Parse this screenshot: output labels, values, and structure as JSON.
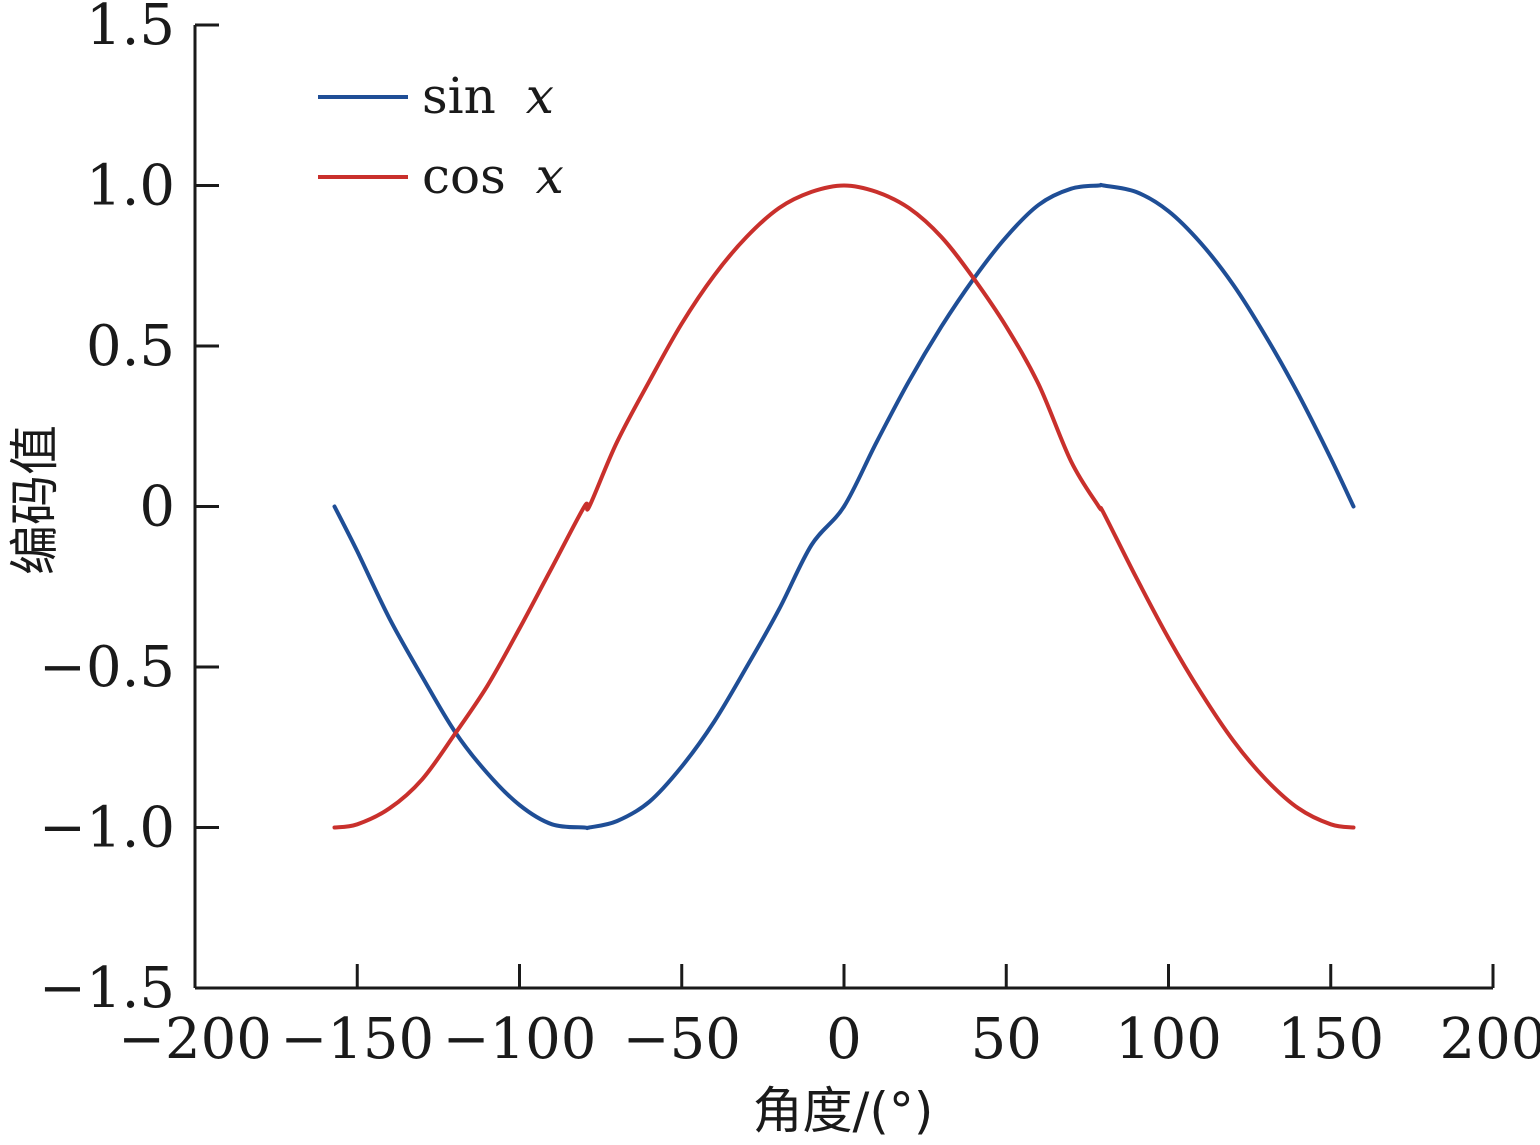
{
  "chart_data": {
    "type": "line",
    "xlabel": "角度/(°)",
    "ylabel": "编码值",
    "xlim": [
      -200,
      200
    ],
    "ylim": [
      -1.5,
      1.5
    ],
    "x_ticks": [
      -200,
      -150,
      -100,
      -50,
      0,
      50,
      100,
      150,
      200
    ],
    "x_tick_labels": [
      "−200",
      "−150",
      "−100",
      "−50",
      "0",
      "50",
      "100",
      "150",
      "200"
    ],
    "y_ticks": [
      -1.5,
      -1.0,
      -0.5,
      0,
      0.5,
      1.0,
      1.5
    ],
    "y_tick_labels": [
      "−1.5",
      "−1.0",
      "−0.5",
      "0",
      "0.5",
      "1.0",
      "1.5"
    ],
    "grid": false,
    "legend_position": "top-left",
    "x": [
      -157,
      -150,
      -140,
      -130,
      -120,
      -110,
      -100,
      -90,
      -80,
      -78.5,
      -70,
      -60,
      -50,
      -40,
      -30,
      -20,
      -10,
      0,
      10,
      20,
      30,
      40,
      50,
      60,
      70,
      78.5,
      80,
      90,
      100,
      110,
      120,
      130,
      140,
      150,
      157
    ],
    "series": [
      {
        "name": "sin x",
        "legend_func": "sin",
        "legend_var": "x",
        "color": "#1f4e96",
        "values": [
          0.0,
          -0.14,
          -0.35,
          -0.53,
          -0.7,
          -0.83,
          -0.93,
          -0.99,
          -1.0,
          -1.0,
          -0.98,
          -0.92,
          -0.81,
          -0.67,
          -0.5,
          -0.32,
          -0.12,
          0.0,
          0.2,
          0.39,
          0.56,
          0.71,
          0.84,
          0.94,
          0.99,
          1.0,
          1.0,
          0.98,
          0.92,
          0.82,
          0.69,
          0.53,
          0.35,
          0.15,
          0.0
        ]
      },
      {
        "name": "cos x",
        "legend_func": "cos",
        "legend_var": "x",
        "color": "#c9302c",
        "values": [
          -1.0,
          -0.99,
          -0.94,
          -0.85,
          -0.71,
          -0.56,
          -0.38,
          -0.19,
          0.0,
          0.0,
          0.2,
          0.39,
          0.57,
          0.72,
          0.84,
          0.93,
          0.98,
          1.0,
          0.98,
          0.93,
          0.84,
          0.71,
          0.56,
          0.38,
          0.14,
          0.0,
          -0.02,
          -0.22,
          -0.41,
          -0.58,
          -0.73,
          -0.85,
          -0.94,
          -0.99,
          -1.0
        ]
      }
    ]
  }
}
